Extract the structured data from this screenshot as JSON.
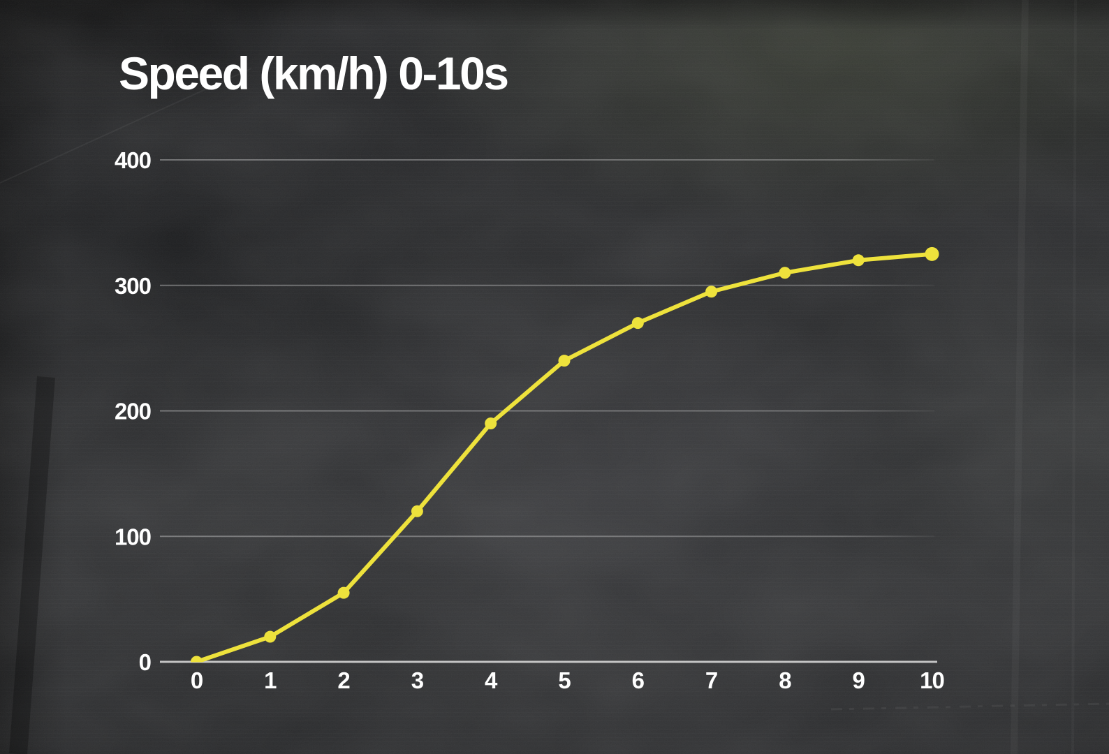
{
  "title": "Speed (km/h) 0-10s",
  "colors": {
    "background": "#212224",
    "title_text": "#ffffff",
    "tick_text": "#ffffff",
    "gridline": "#ffffff",
    "axis_line": "#cfcfcf",
    "series_line": "#eee23c"
  },
  "chart_data": {
    "type": "line",
    "title": "Speed (km/h) 0-10s",
    "x": [
      0,
      1,
      2,
      3,
      4,
      5,
      6,
      7,
      8,
      9,
      10
    ],
    "x_tick_labels": [
      "0",
      "1",
      "2",
      "3",
      "4",
      "5",
      "6",
      "7",
      "8",
      "9",
      "10"
    ],
    "series": [
      {
        "name": "Speed (km/h)",
        "color": "#eee23c",
        "values": [
          0,
          20,
          55,
          120,
          190,
          240,
          270,
          295,
          310,
          320,
          325
        ]
      }
    ],
    "xlabel": "",
    "ylabel": "",
    "xlim": [
      0,
      10
    ],
    "ylim": [
      0,
      400
    ],
    "yticks": [
      0,
      100,
      200,
      300,
      400
    ],
    "y_tick_labels": [
      "0",
      "100",
      "200",
      "300",
      "400"
    ],
    "grid": "horizontal-only",
    "legend": "none",
    "markers": true,
    "line_style": "solid"
  }
}
